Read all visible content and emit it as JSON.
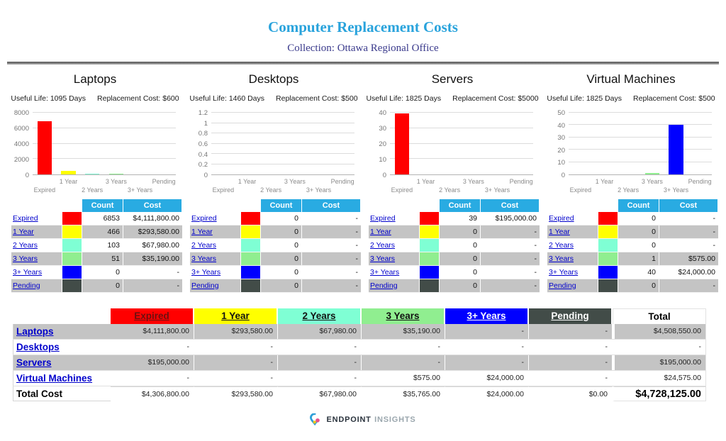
{
  "header": {
    "title": "Computer Replacement Costs",
    "subtitle": "Collection: Ottawa Regional Office"
  },
  "categories": [
    {
      "label": "Expired",
      "color": "#ff0000",
      "header_text": "#6b1010"
    },
    {
      "label": "1 Year",
      "color": "#ffff00",
      "header_text": "#111111"
    },
    {
      "label": "2 Years",
      "color": "#7fffd4",
      "header_text": "#111111"
    },
    {
      "label": "3 Years",
      "color": "#90ee90",
      "header_text": "#111111"
    },
    {
      "label": "3+ Years",
      "color": "#0000ff",
      "header_text": "#ffffff"
    },
    {
      "label": "Pending",
      "color": "#424c48",
      "header_text": "#ffffff"
    }
  ],
  "mini_table": {
    "count_header": "Count",
    "cost_header": "Cost"
  },
  "sections": [
    {
      "name": "Laptops",
      "useful_life": "Useful Life: 1095 Days",
      "replacement_cost": "Replacement Cost: $600",
      "rows": [
        {
          "count": "6853",
          "cost": "$4,111,800.00"
        },
        {
          "count": "466",
          "cost": "$293,580.00"
        },
        {
          "count": "103",
          "cost": "$67,980.00"
        },
        {
          "count": "51",
          "cost": "$35,190.00"
        },
        {
          "count": "0",
          "cost": "-"
        },
        {
          "count": "0",
          "cost": "-"
        }
      ]
    },
    {
      "name": "Desktops",
      "useful_life": "Useful Life: 1460 Days",
      "replacement_cost": "Replacement Cost: $500",
      "rows": [
        {
          "count": "0",
          "cost": "-"
        },
        {
          "count": "0",
          "cost": "-"
        },
        {
          "count": "0",
          "cost": "-"
        },
        {
          "count": "0",
          "cost": "-"
        },
        {
          "count": "0",
          "cost": "-"
        },
        {
          "count": "0",
          "cost": "-"
        }
      ]
    },
    {
      "name": "Servers",
      "useful_life": "Useful Life: 1825 Days",
      "replacement_cost": "Replacement Cost: $5000",
      "rows": [
        {
          "count": "39",
          "cost": "$195,000.00"
        },
        {
          "count": "0",
          "cost": "-"
        },
        {
          "count": "0",
          "cost": "-"
        },
        {
          "count": "0",
          "cost": "-"
        },
        {
          "count": "0",
          "cost": "-"
        },
        {
          "count": "0",
          "cost": "-"
        }
      ]
    },
    {
      "name": "Virtual Machines",
      "useful_life": "Useful Life: 1825 Days",
      "replacement_cost": "Replacement Cost: $500",
      "rows": [
        {
          "count": "0",
          "cost": "-"
        },
        {
          "count": "0",
          "cost": "-"
        },
        {
          "count": "0",
          "cost": "-"
        },
        {
          "count": "1",
          "cost": "$575.00"
        },
        {
          "count": "40",
          "cost": "$24,000.00"
        },
        {
          "count": "0",
          "cost": "-"
        }
      ]
    }
  ],
  "chart_data": [
    {
      "type": "bar",
      "title": "Laptops",
      "categories": [
        "Expired",
        "1 Year",
        "2 Years",
        "3 Years",
        "3+ Years",
        "Pending"
      ],
      "values": [
        6853,
        466,
        103,
        51,
        0,
        0
      ],
      "ylim": [
        0,
        8000
      ],
      "yticks": [
        "0",
        "2000",
        "4000",
        "6000",
        "8000"
      ],
      "xlabel": "",
      "ylabel": "",
      "grid": "horizontal"
    },
    {
      "type": "bar",
      "title": "Desktops",
      "categories": [
        "Expired",
        "1 Year",
        "2 Years",
        "3 Years",
        "3+ Years",
        "Pending"
      ],
      "values": [
        0,
        0,
        0,
        0,
        0,
        0
      ],
      "ylim": [
        0,
        1.2
      ],
      "yticks": [
        "0",
        "0.2",
        "0.4",
        "0.6",
        "0.8",
        "1",
        "1.2"
      ],
      "xlabel": "",
      "ylabel": "",
      "grid": "horizontal"
    },
    {
      "type": "bar",
      "title": "Servers",
      "categories": [
        "Expired",
        "1 Year",
        "2 Years",
        "3 Years",
        "3+ Years",
        "Pending"
      ],
      "values": [
        39,
        0,
        0,
        0,
        0,
        0
      ],
      "ylim": [
        0,
        40
      ],
      "yticks": [
        "0",
        "10",
        "20",
        "30",
        "40"
      ],
      "xlabel": "",
      "ylabel": "",
      "grid": "horizontal"
    },
    {
      "type": "bar",
      "title": "Virtual Machines",
      "categories": [
        "Expired",
        "1 Year",
        "2 Years",
        "3 Years",
        "3+ Years",
        "Pending"
      ],
      "values": [
        0,
        0,
        0,
        1,
        40,
        0
      ],
      "ylim": [
        0,
        50
      ],
      "yticks": [
        "0",
        "10",
        "20",
        "30",
        "40",
        "50"
      ],
      "xlabel": "",
      "ylabel": "",
      "grid": "horizontal"
    }
  ],
  "summary": {
    "total_header": "Total",
    "rows": [
      {
        "label": "Laptops",
        "cells": [
          "$4,111,800.00",
          "$293,580.00",
          "$67,980.00",
          "$35,190.00",
          "-",
          "-"
        ],
        "total": "$4,508,550.00"
      },
      {
        "label": "Desktops",
        "cells": [
          "-",
          "-",
          "-",
          "-",
          "-",
          "-"
        ],
        "total": "-"
      },
      {
        "label": "Servers",
        "cells": [
          "$195,000.00",
          "-",
          "-",
          "-",
          "-",
          "-"
        ],
        "total": "$195,000.00"
      },
      {
        "label": "Virtual Machines",
        "cells": [
          "-",
          "-",
          "-",
          "$575.00",
          "$24,000.00",
          "-"
        ],
        "total": "$24,575.00"
      }
    ],
    "total_row": {
      "label": "Total Cost",
      "cells": [
        "$4,306,800.00",
        "$293,580.00",
        "$67,980.00",
        "$35,765.00",
        "$24,000.00",
        "$0.00"
      ],
      "total": "$4,728,125.00"
    }
  },
  "footer": {
    "brand_bold": "ENDPOINT",
    "brand_light": "INSIGHTS"
  }
}
